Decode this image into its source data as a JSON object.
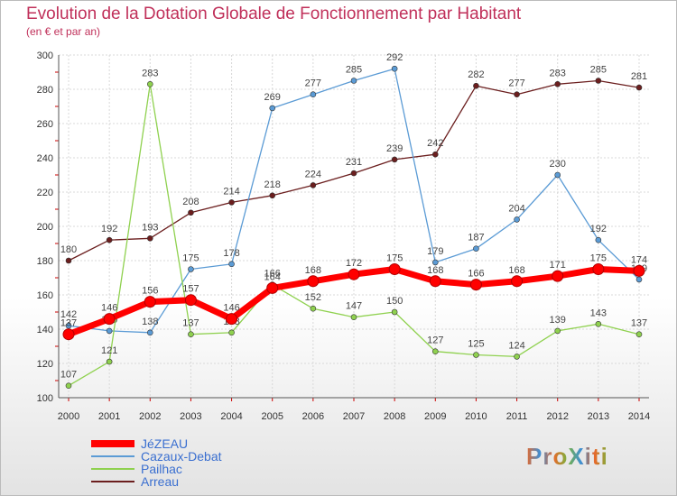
{
  "chart_data": {
    "type": "line",
    "title": "Evolution de la Dotation Globale de Fonctionnement par Habitant",
    "subtitle": "(en € et par an)",
    "xlabel": "",
    "ylabel": "",
    "ylim": [
      100,
      300
    ],
    "yticks": [
      "100",
      "120",
      "140",
      "160",
      "180",
      "200",
      "220",
      "240",
      "260",
      "280",
      "300"
    ],
    "categories": [
      "2000",
      "2001",
      "2002",
      "2003",
      "2004",
      "2005",
      "2006",
      "2007",
      "2008",
      "2009",
      "2010",
      "2011",
      "2012",
      "2013",
      "2014"
    ],
    "grid": true,
    "legend_position": "bottom-left",
    "series": [
      {
        "name": "Arreau",
        "color": "#6b1e1e",
        "values": [
          180,
          192,
          193,
          208,
          214,
          218,
          224,
          231,
          239,
          242,
          282,
          277,
          283,
          285,
          281
        ]
      },
      {
        "name": "Cazaux-Debat",
        "color": "#5b9bd5",
        "values": [
          142,
          139,
          138,
          175,
          178,
          269,
          277,
          285,
          292,
          179,
          187,
          204,
          230,
          192,
          169
        ]
      },
      {
        "name": "Pailhac",
        "color": "#8fd14f",
        "values": [
          107,
          121,
          283,
          137,
          138,
          166,
          152,
          147,
          150,
          127,
          125,
          124,
          139,
          143,
          137
        ]
      },
      {
        "name": "JéZEAU",
        "color": "#ff0000",
        "values": [
          137,
          146,
          156,
          157,
          146,
          164,
          168,
          172,
          175,
          168,
          166,
          168,
          171,
          175,
          174
        ]
      }
    ],
    "legend_order": [
      "JéZEAU",
      "Cazaux-Debat",
      "Pailhac",
      "Arreau"
    ]
  },
  "branding": {
    "logo_text": "ProXiti",
    "logo_colors": [
      "#e8692a",
      "#3d8fd6",
      "#e8692a",
      "#7ab33e",
      "#3d8fd6",
      "#e8692a",
      "#7ab33e"
    ]
  }
}
